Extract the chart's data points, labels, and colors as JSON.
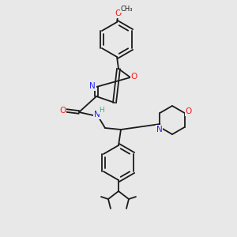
{
  "background_color": "#e8e8e8",
  "bond_color": "#1a1a1a",
  "atom_colors": {
    "N": "#2424ff",
    "O": "#ff1a1a",
    "H": "#44aa88",
    "C": "#1a1a1a"
  },
  "figsize": [
    3.0,
    3.0
  ],
  "dpi": 100
}
